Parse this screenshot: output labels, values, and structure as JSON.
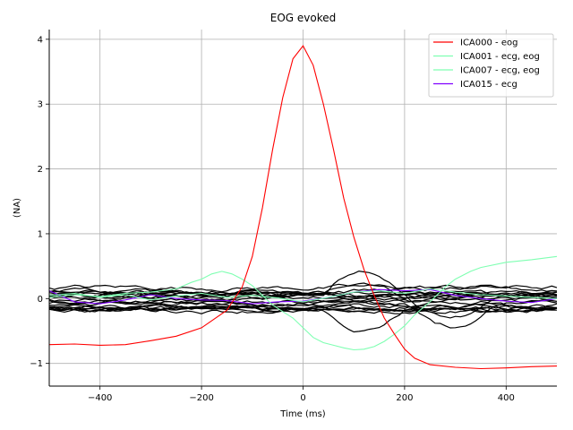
{
  "chart_data": {
    "type": "line",
    "title": "EOG evoked",
    "xlabel": "Time (ms)",
    "ylabel": "(NA)",
    "xlim": [
      -500,
      500
    ],
    "ylim": [
      -1.35,
      4.15
    ],
    "xticks": [
      -400,
      -200,
      0,
      200,
      400
    ],
    "xtick_labels": [
      "−400",
      "−200",
      "0",
      "200",
      "400"
    ],
    "yticks": [
      -1,
      0,
      1,
      2,
      3,
      4
    ],
    "ytick_labels": [
      "−1",
      "0",
      "1",
      "2",
      "3",
      "4"
    ],
    "grid": true,
    "legend_position": "top-right",
    "series": [
      {
        "name": "ICA000 - eog",
        "color": "#ff0000",
        "x": [
          -500,
          -450,
          -400,
          -350,
          -300,
          -250,
          -200,
          -150,
          -120,
          -100,
          -80,
          -60,
          -40,
          -20,
          0,
          20,
          40,
          60,
          80,
          100,
          120,
          140,
          160,
          180,
          200,
          220,
          250,
          300,
          350,
          400,
          450,
          500
        ],
        "y": [
          -0.71,
          -0.7,
          -0.72,
          -0.71,
          -0.65,
          -0.58,
          -0.45,
          -0.18,
          0.18,
          0.65,
          1.4,
          2.3,
          3.1,
          3.7,
          3.9,
          3.6,
          3.0,
          2.3,
          1.55,
          0.95,
          0.45,
          0.05,
          -0.3,
          -0.55,
          -0.78,
          -0.92,
          -1.02,
          -1.06,
          -1.08,
          -1.07,
          -1.05,
          -1.04
        ]
      },
      {
        "name": "ICA001 - ecg, eog",
        "color": "#7fffb2",
        "x": [
          -500,
          -450,
          -400,
          -350,
          -300,
          -250,
          -220,
          -200,
          -180,
          -160,
          -140,
          -120,
          -100,
          -80,
          -60,
          -40,
          -20,
          0,
          20,
          40,
          60,
          80,
          100,
          120,
          140,
          160,
          180,
          200,
          220,
          250,
          280,
          300,
          330,
          350,
          400,
          450,
          500
        ],
        "y": [
          0.02,
          0.06,
          0.03,
          0.08,
          0.1,
          0.15,
          0.25,
          0.3,
          0.38,
          0.42,
          0.38,
          0.3,
          0.2,
          0.05,
          -0.1,
          -0.2,
          -0.3,
          -0.45,
          -0.6,
          -0.68,
          -0.72,
          -0.76,
          -0.79,
          -0.78,
          -0.74,
          -0.66,
          -0.55,
          -0.42,
          -0.25,
          -0.05,
          0.18,
          0.3,
          0.42,
          0.48,
          0.56,
          0.6,
          0.65
        ]
      },
      {
        "name": "ICA007 - ecg, eog",
        "color": "#7fffb2",
        "x": [
          -500,
          -450,
          -400,
          -350,
          -300,
          -250,
          -200,
          -150,
          -100,
          -50,
          0,
          50,
          100,
          150,
          200,
          250,
          300,
          350,
          400,
          450,
          500
        ],
        "y": [
          0.05,
          0.08,
          0.02,
          0.06,
          -0.02,
          0.04,
          0.08,
          0.02,
          0.05,
          0.01,
          -0.05,
          0.02,
          0.1,
          0.12,
          0.08,
          0.15,
          0.1,
          0.06,
          0.04,
          0.02,
          0.0
        ]
      },
      {
        "name": "ICA015 - ecg",
        "color": "#8000ff",
        "x": [
          -500,
          -450,
          -400,
          -350,
          -300,
          -250,
          -200,
          -150,
          -100,
          -50,
          0,
          50,
          100,
          150,
          200,
          250,
          300,
          350,
          400,
          450,
          500
        ],
        "y": [
          0.12,
          -0.05,
          -0.08,
          -0.02,
          0.06,
          0.0,
          -0.02,
          -0.03,
          -0.08,
          -0.05,
          -0.04,
          0.02,
          0.1,
          0.14,
          0.12,
          0.14,
          0.05,
          0.0,
          -0.04,
          -0.06,
          0.0
        ]
      }
    ],
    "background_series_color": "#000000",
    "background_series_count": 20,
    "background_series_band": [
      -0.2,
      0.2
    ]
  }
}
